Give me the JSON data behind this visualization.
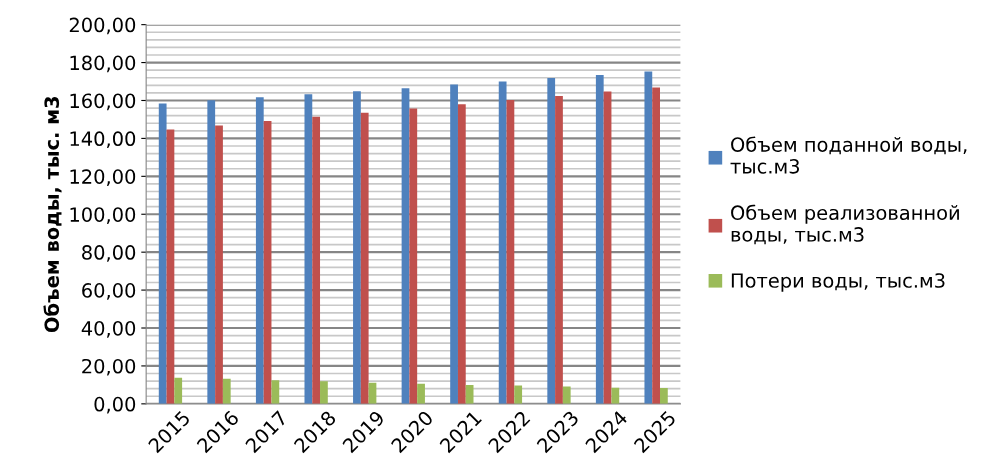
{
  "chart_data": {
    "type": "bar",
    "ylabel": "Объем воды, тыс. м3",
    "categories": [
      "2015",
      "2016",
      "2017",
      "2018",
      "2019",
      "2020",
      "2021",
      "2022",
      "2023",
      "2024",
      "2025"
    ],
    "series": [
      {
        "name": "Объем поданной воды, тыс.м3",
        "color": "#4f81bd",
        "values": [
          158.4,
          160.1,
          161.7,
          163.3,
          164.9,
          166.5,
          168.4,
          170.0,
          171.8,
          173.5,
          175.3
        ]
      },
      {
        "name": "Объем реализованной воды, тыс.м3",
        "color": "#c0504d",
        "values": [
          144.7,
          146.8,
          149.2,
          151.4,
          153.5,
          155.8,
          158.0,
          160.3,
          162.4,
          164.7,
          166.8
        ]
      },
      {
        "name": "Потери воды, тыс.м3",
        "color": "#9bbb59",
        "values": [
          13.8,
          13.3,
          12.5,
          11.9,
          11.1,
          10.6,
          10.0,
          9.7,
          9.1,
          8.5,
          8.3
        ]
      }
    ],
    "ylim": [
      0,
      200
    ],
    "yticks": [
      {
        "value": 0,
        "label": "0,00"
      },
      {
        "value": 20,
        "label": "20,00"
      },
      {
        "value": 40,
        "label": "40,00"
      },
      {
        "value": 60,
        "label": "60,00"
      },
      {
        "value": 80,
        "label": "80,00"
      },
      {
        "value": 100,
        "label": "100,00"
      },
      {
        "value": 120,
        "label": "120,00"
      },
      {
        "value": 140,
        "label": "140,00"
      },
      {
        "value": 160,
        "label": "160,00"
      },
      {
        "value": 180,
        "label": "180,00"
      },
      {
        "value": 200,
        "label": "200,00"
      }
    ],
    "grid": "y",
    "legend": "right"
  }
}
